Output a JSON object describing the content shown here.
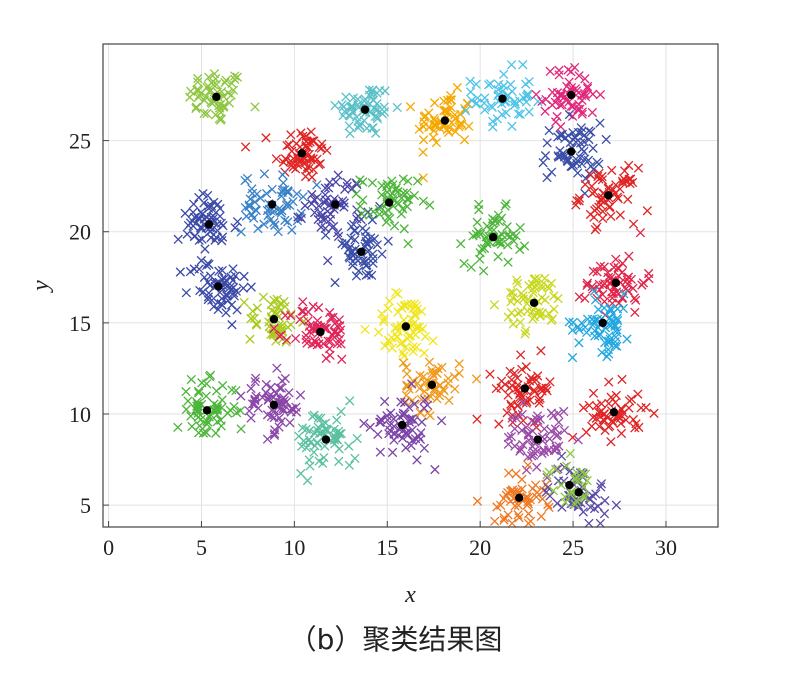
{
  "caption": "（b）聚类结果图",
  "chart_data": {
    "type": "scatter",
    "xlabel": "x",
    "ylabel": "y",
    "xlim": [
      -0.3,
      32.8
    ],
    "ylim": [
      3.8,
      30.3
    ],
    "xticks": [
      0,
      5,
      10,
      15,
      20,
      25,
      30
    ],
    "yticks": [
      5,
      10,
      15,
      20,
      25
    ],
    "grid": true,
    "marker": "x",
    "centroid_color": "#000000",
    "clusters": [
      {
        "center": [
          5.8,
          27.4
        ],
        "color": "#8cc63f",
        "spread": 0.75,
        "n": 55
      },
      {
        "center": [
          10.4,
          24.3
        ],
        "color": "#e02424",
        "spread": 0.75,
        "n": 60
      },
      {
        "center": [
          13.8,
          26.7
        ],
        "color": "#5bc0c8",
        "spread": 0.75,
        "n": 60
      },
      {
        "center": [
          18.1,
          26.1
        ],
        "color": "#f5a800",
        "spread": 0.75,
        "n": 55
      },
      {
        "center": [
          21.2,
          27.3
        ],
        "color": "#4cc3e8",
        "spread": 0.8,
        "n": 55
      },
      {
        "center": [
          24.9,
          27.5
        ],
        "color": "#e0287a",
        "spread": 0.75,
        "n": 55
      },
      {
        "center": [
          24.9,
          24.4
        ],
        "color": "#3b4fa8",
        "spread": 0.8,
        "n": 60
      },
      {
        "center": [
          26.9,
          22.0
        ],
        "color": "#e02424",
        "spread": 0.75,
        "n": 60
      },
      {
        "center": [
          5.4,
          20.4
        ],
        "color": "#3b4aa8",
        "spread": 0.8,
        "n": 60
      },
      {
        "center": [
          8.8,
          21.5
        ],
        "color": "#3b82c8",
        "spread": 0.8,
        "n": 60
      },
      {
        "center": [
          12.2,
          21.5
        ],
        "color": "#4a44a8",
        "spread": 0.8,
        "n": 55
      },
      {
        "center": [
          15.1,
          21.6
        ],
        "color": "#4cb53a",
        "spread": 0.75,
        "n": 55
      },
      {
        "center": [
          13.6,
          18.9
        ],
        "color": "#3b4fa8",
        "spread": 0.8,
        "n": 55
      },
      {
        "center": [
          20.7,
          19.7
        ],
        "color": "#4cb53a",
        "spread": 0.75,
        "n": 55
      },
      {
        "center": [
          5.9,
          17.0
        ],
        "color": "#3b4aa8",
        "spread": 0.8,
        "n": 60
      },
      {
        "center": [
          27.3,
          17.2
        ],
        "color": "#e02448",
        "spread": 0.8,
        "n": 60
      },
      {
        "center": [
          8.9,
          15.2
        ],
        "color": "#a8cc1e",
        "spread": 0.7,
        "n": 45
      },
      {
        "center": [
          11.4,
          14.5
        ],
        "color": "#e0245a",
        "spread": 0.8,
        "n": 60
      },
      {
        "center": [
          16.0,
          14.8
        ],
        "color": "#f0e61e",
        "spread": 0.9,
        "n": 60
      },
      {
        "center": [
          22.9,
          16.1
        ],
        "color": "#c8d81e",
        "spread": 0.8,
        "n": 55
      },
      {
        "center": [
          26.6,
          15.0
        ],
        "color": "#22a8e0",
        "spread": 0.8,
        "n": 60
      },
      {
        "center": [
          17.4,
          11.6
        ],
        "color": "#f09a1e",
        "spread": 0.75,
        "n": 55
      },
      {
        "center": [
          22.4,
          11.4
        ],
        "color": "#e02424",
        "spread": 0.8,
        "n": 60
      },
      {
        "center": [
          5.3,
          10.2
        ],
        "color": "#4cb53a",
        "spread": 0.8,
        "n": 60
      },
      {
        "center": [
          8.9,
          10.5
        ],
        "color": "#8a46a8",
        "spread": 0.8,
        "n": 60
      },
      {
        "center": [
          15.8,
          9.4
        ],
        "color": "#7a44a8",
        "spread": 0.85,
        "n": 60
      },
      {
        "center": [
          27.2,
          10.1
        ],
        "color": "#e02424",
        "spread": 0.75,
        "n": 55
      },
      {
        "center": [
          11.7,
          8.6
        ],
        "color": "#5bc0a0",
        "spread": 0.85,
        "n": 60
      },
      {
        "center": [
          23.1,
          8.6
        ],
        "color": "#9a4aa8",
        "spread": 0.85,
        "n": 60
      },
      {
        "center": [
          22.1,
          5.4
        ],
        "color": "#f07820",
        "spread": 0.75,
        "n": 50
      },
      {
        "center": [
          25.3,
          5.7
        ],
        "color": "#5a4aa8",
        "spread": 0.8,
        "n": 50
      },
      {
        "center": [
          24.8,
          6.1
        ],
        "color": "#8cc63f",
        "spread": 0.6,
        "n": 25
      }
    ]
  }
}
